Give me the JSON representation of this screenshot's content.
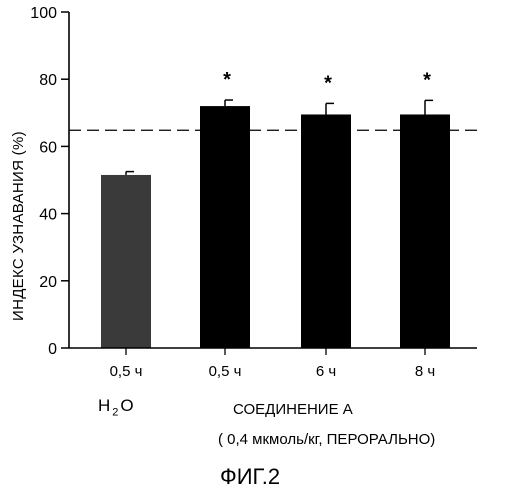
{
  "chart_data": {
    "type": "bar",
    "ylabel": "ИНДЕКС УЗНАВАНИЯ  (%)",
    "ylim": [
      0,
      100
    ],
    "yticks": [
      0,
      20,
      40,
      60,
      80,
      100
    ],
    "categories": [
      "0,5 ч",
      "0,5 ч",
      "6 ч",
      "8 ч"
    ],
    "values": [
      51.5,
      72,
      69.5,
      69.5
    ],
    "errors": [
      1,
      1.8,
      3.3,
      4.2
    ],
    "significance": [
      "",
      "*",
      "*",
      "*"
    ],
    "reference_line": 64.8,
    "bar_colors": [
      "#3a3a3a",
      "#000000",
      "#000000",
      "#000000"
    ]
  },
  "labels": {
    "h2o_main": "H",
    "h2o_sub": "2",
    "h2o_tail": "O",
    "compound": "СОЕДИНЕНИЕ А",
    "dose": "( 0,4 мкмоль/кг, ПЕРОРАЛЬНО)",
    "figure": "ФИГ.2"
  }
}
